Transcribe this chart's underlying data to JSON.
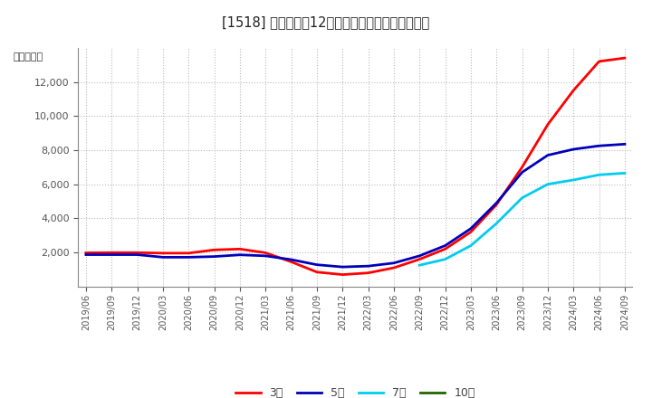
{
  "title": "[1518] 当期純利益12か月移動合計の平均値の推移",
  "ylabel": "（百万円）",
  "background_color": "#ffffff",
  "plot_background_color": "#ffffff",
  "grid_color": "#aaaaaa",
  "ylim": [
    0,
    14000
  ],
  "yticks": [
    2000,
    4000,
    6000,
    8000,
    10000,
    12000
  ],
  "legend_labels": [
    "3年",
    "5年",
    "7年",
    "10年"
  ],
  "legend_colors": [
    "#ff0000",
    "#0000bb",
    "#00ccee",
    "#226600"
  ],
  "x_labels": [
    "2019/06",
    "2019/09",
    "2019/12",
    "2020/03",
    "2020/06",
    "2020/09",
    "2020/12",
    "2021/03",
    "2021/06",
    "2021/09",
    "2021/12",
    "2022/03",
    "2022/06",
    "2022/09",
    "2022/12",
    "2023/03",
    "2023/06",
    "2023/09",
    "2023/12",
    "2024/03",
    "2024/06",
    "2024/09"
  ],
  "series_3yr": [
    1980,
    1990,
    1990,
    1960,
    1960,
    2150,
    2200,
    1980,
    1450,
    850,
    700,
    800,
    1100,
    1600,
    2200,
    3200,
    4800,
    7000,
    9500,
    11500,
    13200,
    13400
  ],
  "series_5yr": [
    1870,
    1870,
    1870,
    1720,
    1720,
    1760,
    1860,
    1800,
    1580,
    1280,
    1150,
    1200,
    1380,
    1800,
    2400,
    3400,
    4900,
    6700,
    7700,
    8050,
    8250,
    8350
  ],
  "series_7yr": [
    null,
    null,
    null,
    null,
    null,
    null,
    null,
    null,
    null,
    null,
    null,
    null,
    null,
    1250,
    1600,
    2400,
    3700,
    5200,
    6000,
    6250,
    6550,
    6650
  ],
  "series_10yr": [
    null,
    null,
    null,
    null,
    null,
    null,
    null,
    null,
    null,
    null,
    null,
    null,
    null,
    null,
    null,
    null,
    null,
    null,
    null,
    null,
    null,
    null
  ]
}
